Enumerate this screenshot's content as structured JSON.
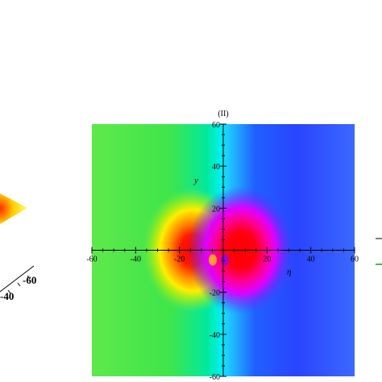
{
  "chart_data": {
    "type": "heatmap",
    "title": "(II)",
    "xlabel": "η",
    "ylabel": "y",
    "xlim": [
      -60,
      60
    ],
    "ylim": [
      -60,
      60
    ],
    "x_ticks": [
      "-60",
      "-40",
      "-20",
      "20",
      "40",
      "60"
    ],
    "x_tick_values": [
      -60,
      -40,
      -20,
      20,
      40,
      60
    ],
    "y_ticks": [
      "60",
      "40",
      "20",
      "-20",
      "-40",
      "-60"
    ],
    "y_tick_values": [
      60,
      40,
      20,
      -20,
      -40,
      -60
    ],
    "grid": false,
    "colormap": "hue (green → cyan → blue → magenta → red)",
    "features": [
      {
        "name": "left lobe",
        "x": -14,
        "y": 0,
        "color": "#ff0000"
      },
      {
        "name": "right lobe",
        "x": 8,
        "y": 0,
        "color": "#ff0000"
      }
    ]
  },
  "left_partial_plot": {
    "tick_labels": [
      "-40",
      "-60"
    ]
  },
  "right_partial_plot": {}
}
